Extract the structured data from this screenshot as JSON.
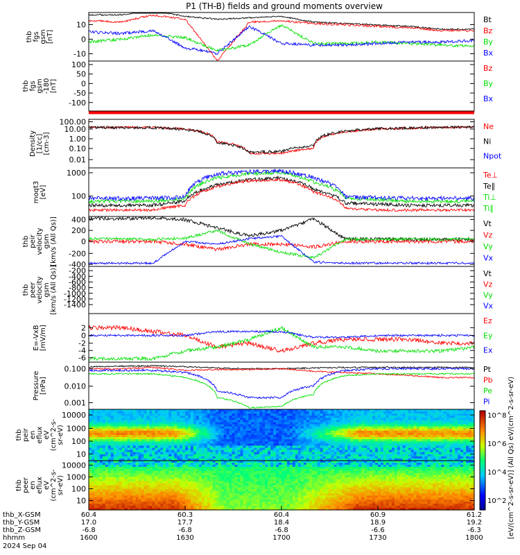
{
  "title": "P1 (TH-B) fields and ground moments overview",
  "colors": {
    "black": "#000000",
    "red": "#ff0000",
    "green": "#00e000",
    "blue": "#0000ff"
  },
  "panels": [
    {
      "id": "fgs",
      "ylabel": [
        "thb",
        "fgs",
        "gsm",
        "[nT]"
      ],
      "ticks": [
        {
          "label": "10",
          "frac": 0.25
        },
        {
          "label": "0",
          "frac": 0.55
        },
        {
          "label": "-10",
          "frac": 0.85
        }
      ],
      "legend": [
        {
          "text": "Bt",
          "color": "black"
        },
        {
          "text": "Bz",
          "color": "red"
        },
        {
          "text": "By",
          "color": "green"
        },
        {
          "text": "Bx",
          "color": "blue"
        }
      ]
    },
    {
      "id": "fgs-mask",
      "ylabel": [
        "thb",
        "fgs",
        "gsm",
        "-180",
        "[nT]"
      ],
      "ticks": [
        {
          "label": "100",
          "frac": 0.07
        },
        {
          "label": "50",
          "frac": 0.26
        },
        {
          "label": "0",
          "frac": 0.45
        },
        {
          "label": "-50",
          "frac": 0.64
        },
        {
          "label": "-100",
          "frac": 0.83
        }
      ],
      "legend": [
        {
          "text": "Bz",
          "color": "red"
        },
        {
          "text": "By",
          "color": "green"
        },
        {
          "text": "Bx",
          "color": "blue"
        }
      ]
    },
    {
      "id": "density",
      "ylabel": [
        "Density",
        "[1/cc]",
        "[cm-3]"
      ],
      "ticks": [
        {
          "label": "100.00",
          "frac": 0.05
        },
        {
          "label": "10.00",
          "frac": 0.2
        },
        {
          "label": "1.00",
          "frac": 0.4
        },
        {
          "label": "0.10",
          "frac": 0.6
        },
        {
          "label": "0.01",
          "frac": 0.83
        }
      ],
      "legend": [
        {
          "text": "Ne",
          "color": "red"
        },
        {
          "text": "Ni",
          "color": "black"
        },
        {
          "text": "Npot",
          "color": "blue"
        }
      ]
    },
    {
      "id": "temp",
      "ylabel": [
        "moqt3",
        "[eV]"
      ],
      "ticks": [
        {
          "label": "1000",
          "frac": 0.1
        },
        {
          "label": "100",
          "frac": 0.58
        }
      ],
      "legend": [
        {
          "text": "Te⊥",
          "color": "red"
        },
        {
          "text": "Te∥",
          "color": "black"
        },
        {
          "text": "Ti⊥",
          "color": "green"
        },
        {
          "text": "Ti∥",
          "color": "green"
        }
      ]
    },
    {
      "id": "vel-i",
      "ylabel": [
        "thb",
        "peir",
        "velocity",
        "gsm",
        "[km/s (All Qs)]"
      ],
      "ticks": [
        {
          "label": "400",
          "frac": 0.06
        },
        {
          "label": "200",
          "frac": 0.28
        },
        {
          "label": "0",
          "frac": 0.5
        },
        {
          "label": "-200",
          "frac": 0.74
        },
        {
          "label": "-400",
          "frac": 0.96
        }
      ],
      "legend": [
        {
          "text": "Vt",
          "color": "black"
        },
        {
          "text": "Vz",
          "color": "red"
        },
        {
          "text": "Vy",
          "color": "green"
        },
        {
          "text": "Vx",
          "color": "blue"
        }
      ]
    },
    {
      "id": "vel-e",
      "ylabel": [
        "thb",
        "peer",
        "velocity",
        "gsm",
        "[km/s (All Qs)]"
      ],
      "ticks": [
        {
          "label": "-200",
          "frac": 0.09
        },
        {
          "label": "-400",
          "frac": 0.21
        },
        {
          "label": "-600",
          "frac": 0.33
        },
        {
          "label": "-800",
          "frac": 0.45
        },
        {
          "label": "-1000",
          "frac": 0.57
        },
        {
          "label": "-1200",
          "frac": 0.69
        },
        {
          "label": "-1400",
          "frac": 0.81
        }
      ],
      "legend": [
        {
          "text": "Vt",
          "color": "black"
        },
        {
          "text": "Vz",
          "color": "red"
        },
        {
          "text": "Vy",
          "color": "green"
        },
        {
          "text": "Vx",
          "color": "blue"
        }
      ]
    },
    {
      "id": "efield",
      "ylabel": [
        "E=-VxB",
        "[mV/m]"
      ],
      "ticks": [
        {
          "label": "2",
          "frac": 0.29
        },
        {
          "label": "0",
          "frac": 0.45
        },
        {
          "label": "-2",
          "frac": 0.61
        },
        {
          "label": "-4",
          "frac": 0.76
        },
        {
          "label": "-6",
          "frac": 0.91
        }
      ],
      "legend": [
        {
          "text": "Ez",
          "color": "red"
        },
        {
          "text": "Ey",
          "color": "green"
        },
        {
          "text": "Ex",
          "color": "blue"
        }
      ]
    },
    {
      "id": "pressure",
      "ylabel": [
        "Pressure",
        "[nPa]"
      ],
      "ticks": [
        {
          "label": "0.100",
          "frac": 0.14
        },
        {
          "label": "0.010",
          "frac": 0.51
        },
        {
          "label": "0.001",
          "frac": 0.86
        }
      ],
      "legend": [
        {
          "text": "Pt",
          "color": "black"
        },
        {
          "text": "Pb",
          "color": "red"
        },
        {
          "text": "Pe",
          "color": "green"
        },
        {
          "text": "Pi",
          "color": "blue"
        }
      ]
    },
    {
      "id": "spec-i",
      "ylabel": [
        "thb",
        "peir",
        "en",
        "eflux",
        "eV",
        "(cm^2-s-",
        "sr-eV)"
      ],
      "ticks": [
        {
          "label": "10000",
          "frac": 0.11
        },
        {
          "label": "1000",
          "frac": 0.37
        },
        {
          "label": "100",
          "frac": 0.62
        },
        {
          "label": "10",
          "frac": 0.87
        }
      ],
      "legend": []
    },
    {
      "id": "spec-e",
      "ylabel": [
        "thb",
        "peer",
        "en",
        "eflux",
        "eV",
        "(cm^2-s-",
        "sr-eV)"
      ],
      "ticks": [
        {
          "label": "10000",
          "frac": 0.09
        },
        {
          "label": "1000",
          "frac": 0.33
        },
        {
          "label": "100",
          "frac": 0.57
        },
        {
          "label": "10",
          "frac": 0.81
        }
      ],
      "legend": []
    }
  ],
  "colorbar": {
    "ticks": [
      "10^8",
      "10^6",
      "10^4",
      "10^2"
    ],
    "label": "[eV/(cm^2-s-sr-eV)] (All Qs) eV/(cm^2-s-sr-eV)"
  },
  "xaxis": {
    "rows": [
      {
        "label": "thb_X-GSM",
        "values": [
          "60.4",
          "60.3",
          "60.4",
          "60.9",
          "61.2"
        ]
      },
      {
        "label": "thb_Y-GSM",
        "values": [
          "17.0",
          "17.7",
          "18.4",
          "18.9",
          "19.2"
        ]
      },
      {
        "label": "thb_Z-GSM",
        "values": [
          "-6.8",
          "-6.8",
          "-6.8",
          "-6.6",
          "-6.3"
        ]
      },
      {
        "label": "hhmm",
        "values": [
          "1600",
          "1630",
          "1700",
          "1730",
          "1800"
        ]
      }
    ],
    "date": "2024 Sep 04"
  },
  "chart_data": {
    "type": "line",
    "title": "P1 (TH-B) fields and ground moments overview",
    "x": [
      "1600",
      "1610",
      "1620",
      "1630",
      "1640",
      "1650",
      "1700",
      "1710",
      "1720",
      "1730",
      "1740",
      "1750",
      "1800"
    ],
    "panels": [
      {
        "name": "fgs gsm [nT]",
        "series": [
          {
            "name": "Bt",
            "values": [
              17,
              17,
              20,
              16,
              14,
              15,
              16,
              12,
              11,
              10,
              9,
              7,
              7
            ]
          },
          {
            "name": "Bz",
            "values": [
              13,
              12,
              17,
              14,
              -15,
              12,
              13,
              11,
              10,
              9,
              8,
              6,
              6
            ]
          },
          {
            "name": "By",
            "values": [
              -2,
              0,
              3,
              1,
              -8,
              -4,
              10,
              -3,
              -3,
              -2,
              -3,
              -4,
              -5
            ]
          },
          {
            "name": "Bx",
            "values": [
              5,
              4,
              6,
              -6,
              -10,
              9,
              -3,
              -4,
              -4,
              -3,
              -2,
              -2,
              -1
            ]
          }
        ]
      },
      {
        "name": "Density [1/cc]",
        "series": [
          {
            "name": "Ne",
            "values": [
              15,
              15,
              15,
              10,
              0.5,
              0.03,
              0.03,
              0.1,
              5,
              10,
              12,
              15,
              16
            ]
          },
          {
            "name": "Ni",
            "values": [
              14,
              14,
              14,
              9,
              0.4,
              0.04,
              0.05,
              0.2,
              6,
              11,
              13,
              15,
              16
            ]
          }
        ]
      },
      {
        "name": "Temperature [eV]",
        "series": [
          {
            "name": "Te∥",
            "values": [
              40,
              40,
              40,
              60,
              300,
              500,
              600,
              200,
              50,
              45,
              40,
              40,
              40
            ]
          },
          {
            "name": "Ti⊥",
            "values": [
              60,
              60,
              60,
              80,
              600,
              900,
              1000,
              400,
              80,
              70,
              60,
              60,
              60
            ]
          }
        ]
      },
      {
        "name": "peir velocity [km/s]",
        "series": [
          {
            "name": "Vt",
            "values": [
              420,
              420,
              430,
              400,
              250,
              100,
              200,
              420,
              40,
              40,
              40,
              40,
              40
            ]
          },
          {
            "name": "Vz",
            "values": [
              0,
              0,
              0,
              -50,
              -150,
              -50,
              -50,
              -100,
              0,
              0,
              0,
              0,
              0
            ]
          },
          {
            "name": "Vy",
            "values": [
              50,
              50,
              40,
              60,
              200,
              -50,
              -200,
              -300,
              40,
              40,
              40,
              40,
              40
            ]
          },
          {
            "name": "Vx",
            "values": [
              -400,
              -400,
              -400,
              0,
              -50,
              50,
              100,
              -380,
              -400,
              -400,
              -400,
              -400,
              -400
            ]
          }
        ]
      },
      {
        "name": "E=-VxB [mV/m]",
        "series": [
          {
            "name": "Ez",
            "values": [
              2,
              2,
              1,
              0,
              -3,
              -2,
              -4,
              -2,
              -1,
              -1,
              -1,
              -2,
              -2
            ]
          },
          {
            "name": "Ey",
            "values": [
              -6,
              -6,
              -6,
              -4,
              -3,
              -1,
              2,
              -3,
              -3,
              -4,
              -4,
              -4,
              -3
            ]
          },
          {
            "name": "Ex",
            "values": [
              0,
              0,
              0,
              0,
              1,
              1,
              1,
              -0.5,
              -0.5,
              0,
              0,
              0,
              0
            ]
          }
        ]
      },
      {
        "name": "Pressure [nPa]",
        "series": [
          {
            "name": "Pt",
            "values": [
              0.13,
              0.14,
              0.15,
              0.13,
              0.11,
              0.1,
              0.1,
              0.11,
              0.12,
              0.12,
              0.12,
              0.12,
              0.12
            ]
          },
          {
            "name": "Pb",
            "values": [
              0.1,
              0.1,
              0.12,
              0.08,
              0.09,
              0.09,
              0.1,
              0.07,
              0.06,
              0.05,
              0.04,
              0.03,
              0.03
            ]
          },
          {
            "name": "Pe",
            "values": [
              0.05,
              0.05,
              0.05,
              0.03,
              0.002,
              0.0005,
              0.0006,
              0.003,
              0.04,
              0.05,
              0.05,
              0.05,
              0.05
            ]
          },
          {
            "name": "Pi",
            "values": [
              0.08,
              0.08,
              0.08,
              0.06,
              0.005,
              0.002,
              0.002,
              0.01,
              0.08,
              0.1,
              0.1,
              0.1,
              0.1
            ]
          }
        ]
      }
    ]
  }
}
